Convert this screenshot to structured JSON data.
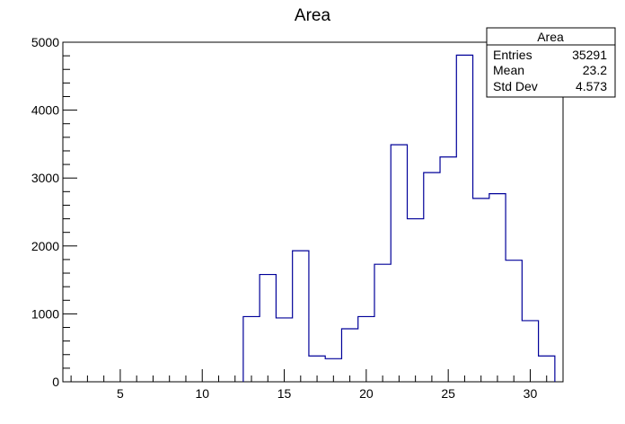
{
  "chart_data": {
    "type": "bar",
    "title": "Area",
    "xlabel": "",
    "ylabel": "",
    "xlim": [
      1.5,
      32
    ],
    "ylim": [
      0,
      5000
    ],
    "x_ticks": [
      5,
      10,
      15,
      20,
      25,
      30
    ],
    "y_ticks": [
      0,
      1000,
      2000,
      3000,
      4000,
      5000
    ],
    "bin_edges": [
      12.5,
      13.5,
      14.5,
      15.5,
      16.5,
      17.5,
      18.5,
      19.5,
      20.5,
      21.5,
      22.5,
      23.5,
      24.5,
      25.5,
      26.5,
      27.5,
      28.5,
      29.5,
      30.5,
      31.5
    ],
    "values": [
      960,
      1580,
      940,
      1930,
      380,
      340,
      780,
      960,
      1730,
      3490,
      2400,
      3080,
      3310,
      4810,
      2700,
      2770,
      1790,
      900,
      380
    ],
    "line_color": "#000099",
    "grid": false,
    "stats_box": {
      "title": "Area",
      "rows": [
        {
          "label": "Entries",
          "value": "35291"
        },
        {
          "label": "Mean",
          "value": "23.2"
        },
        {
          "label": "Std Dev",
          "value": "4.573"
        }
      ]
    }
  }
}
